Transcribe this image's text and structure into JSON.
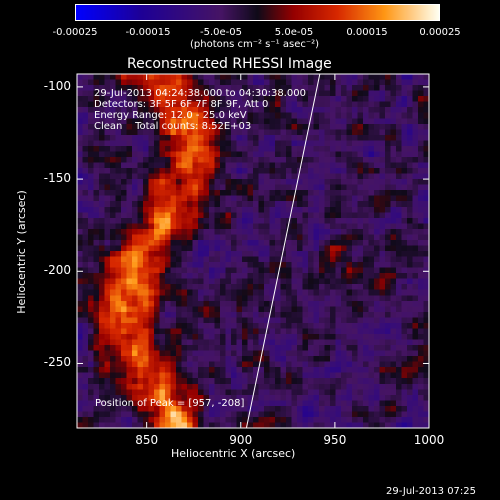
{
  "chart_data": {
    "type": "heatmap",
    "title": "Reconstructed RHESSI Image",
    "xlabel": "Heliocentric X (arcsec)",
    "ylabel": "Heliocentric Y (arcsec)",
    "xlim": [
      813,
      1000
    ],
    "ylim": [
      -285,
      -93
    ],
    "x_ticks": [
      "850",
      "900",
      "950",
      "1000"
    ],
    "x_tick_values": [
      850,
      900,
      950,
      1000
    ],
    "y_ticks": [
      "-100",
      "-150",
      "-200",
      "-250"
    ],
    "y_tick_values": [
      -100,
      -150,
      -200,
      -250
    ],
    "colorbar": {
      "ticks": [
        "-0.00025",
        "-0.00015",
        "-5.0e-05",
        "5.0e-05",
        "0.00015",
        "0.00025"
      ],
      "tick_values": [
        -0.00025,
        -0.00015,
        -5e-05,
        5e-05,
        0.00015,
        0.00025
      ],
      "unit_label": "(photons cm⁻² s⁻¹ asec⁻²)",
      "range": [
        -0.00025,
        0.00025
      ]
    },
    "annotations": {
      "time_range": "29-Jul-2013 04:24:38.000 to 04:30:38.000",
      "detectors": "Detectors: 3F 5F 6F 7F 8F 9F, Att 0",
      "energy": "Energy Range: 12.0 - 25.0 keV",
      "clean": "Clean    Total counts: 8.52E+03",
      "peak": "Position of Peak = [957, -208]"
    },
    "limb_line": {
      "x": [
        903,
        942
      ],
      "y": [
        -285,
        -93
      ]
    },
    "peak_position": [
      957,
      -208
    ],
    "timestamp": "29-Jul-2013 07:25",
    "colors": {
      "background": "#000000",
      "text": "#ffffff",
      "limb": "#ffffff"
    }
  }
}
